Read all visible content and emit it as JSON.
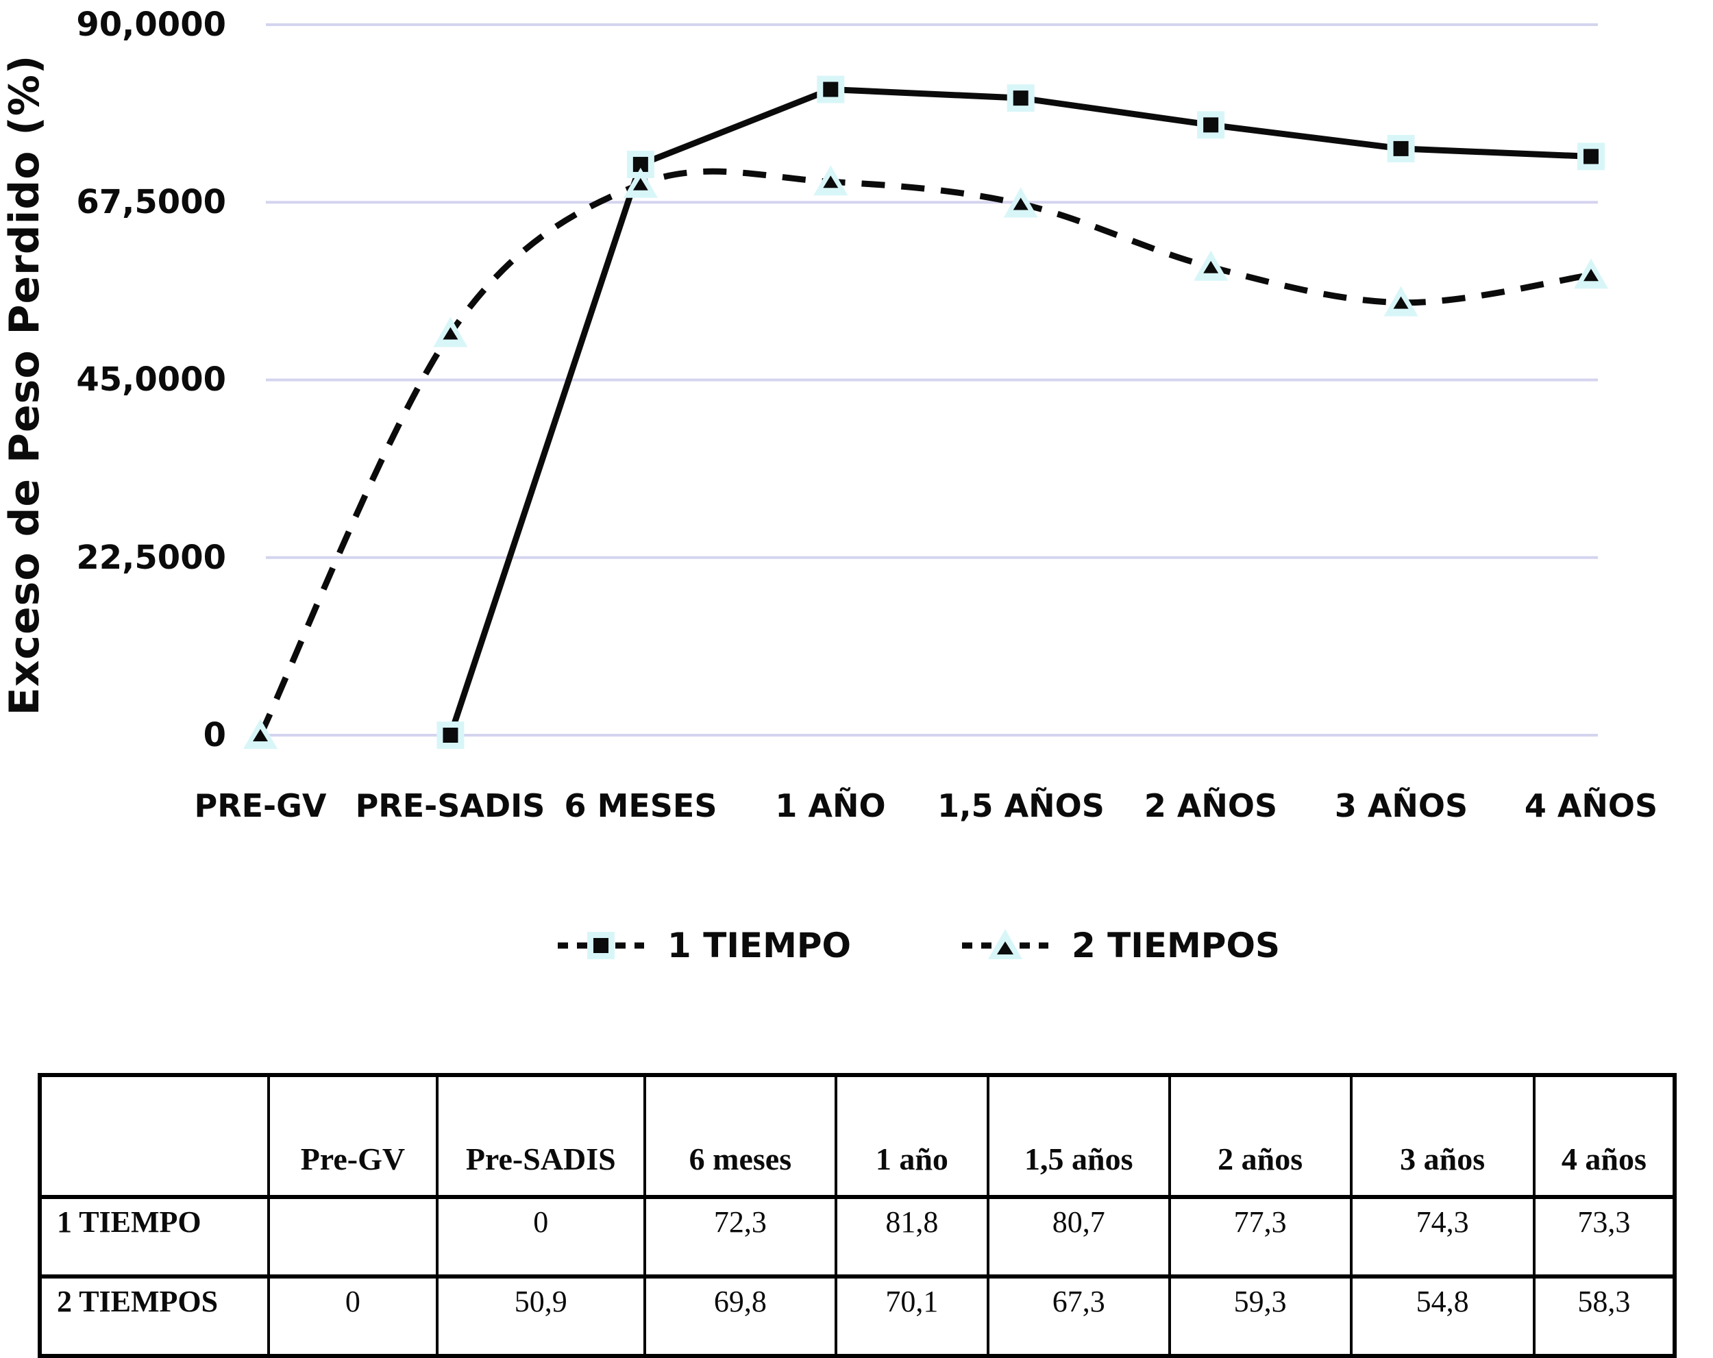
{
  "chart_data": {
    "type": "line",
    "categories": [
      "PRE-GV",
      "PRE-SADIS",
      "6 MESES",
      "1 AÑO",
      "1,5 AÑOS",
      "2 AÑOS",
      "3 AÑOS",
      "4 AÑOS"
    ],
    "series": [
      {
        "name": "1 TIEMPO",
        "line": "solid",
        "marker": "square",
        "values": [
          null,
          0,
          72.3,
          81.8,
          80.7,
          77.3,
          74.3,
          73.3
        ]
      },
      {
        "name": "2 TIEMPOS",
        "line": "dashed",
        "marker": "triangle",
        "values": [
          0,
          50.9,
          69.8,
          70.1,
          67.3,
          59.3,
          54.8,
          58.3
        ]
      }
    ],
    "ylabel": "Exceso de Peso Perdido (%)",
    "xlabel": "",
    "ylim": [
      0,
      90
    ],
    "y_ticks": [
      {
        "label": "90,0000",
        "value": 90
      },
      {
        "label": "67,5000",
        "value": 67.5
      },
      {
        "label": "45,0000",
        "value": 45
      },
      {
        "label": "22,5000",
        "value": 22.5
      },
      {
        "label": "0",
        "value": 0
      }
    ],
    "grid": true,
    "legend_position": "bottom",
    "colors": {
      "line": "#0b0b0b",
      "gridline": "#d4d4f0",
      "marker_halo": "#d8f6f8"
    }
  },
  "table": {
    "headers": [
      "",
      "Pre-GV",
      "Pre-SADIS",
      "6 meses",
      "1 año",
      "1,5 años",
      "2 años",
      "3 años",
      "4 años"
    ],
    "rows": [
      {
        "label": "1 TIEMPO",
        "values": [
          "",
          "0",
          "72,3",
          "81,8",
          "80,7",
          "77,3",
          "74,3",
          "73,3"
        ]
      },
      {
        "label": "2 TIEMPOS",
        "values": [
          "0",
          "50,9",
          "69,8",
          "70,1",
          "67,3",
          "59,3",
          "54,8",
          "58,3"
        ]
      }
    ]
  }
}
